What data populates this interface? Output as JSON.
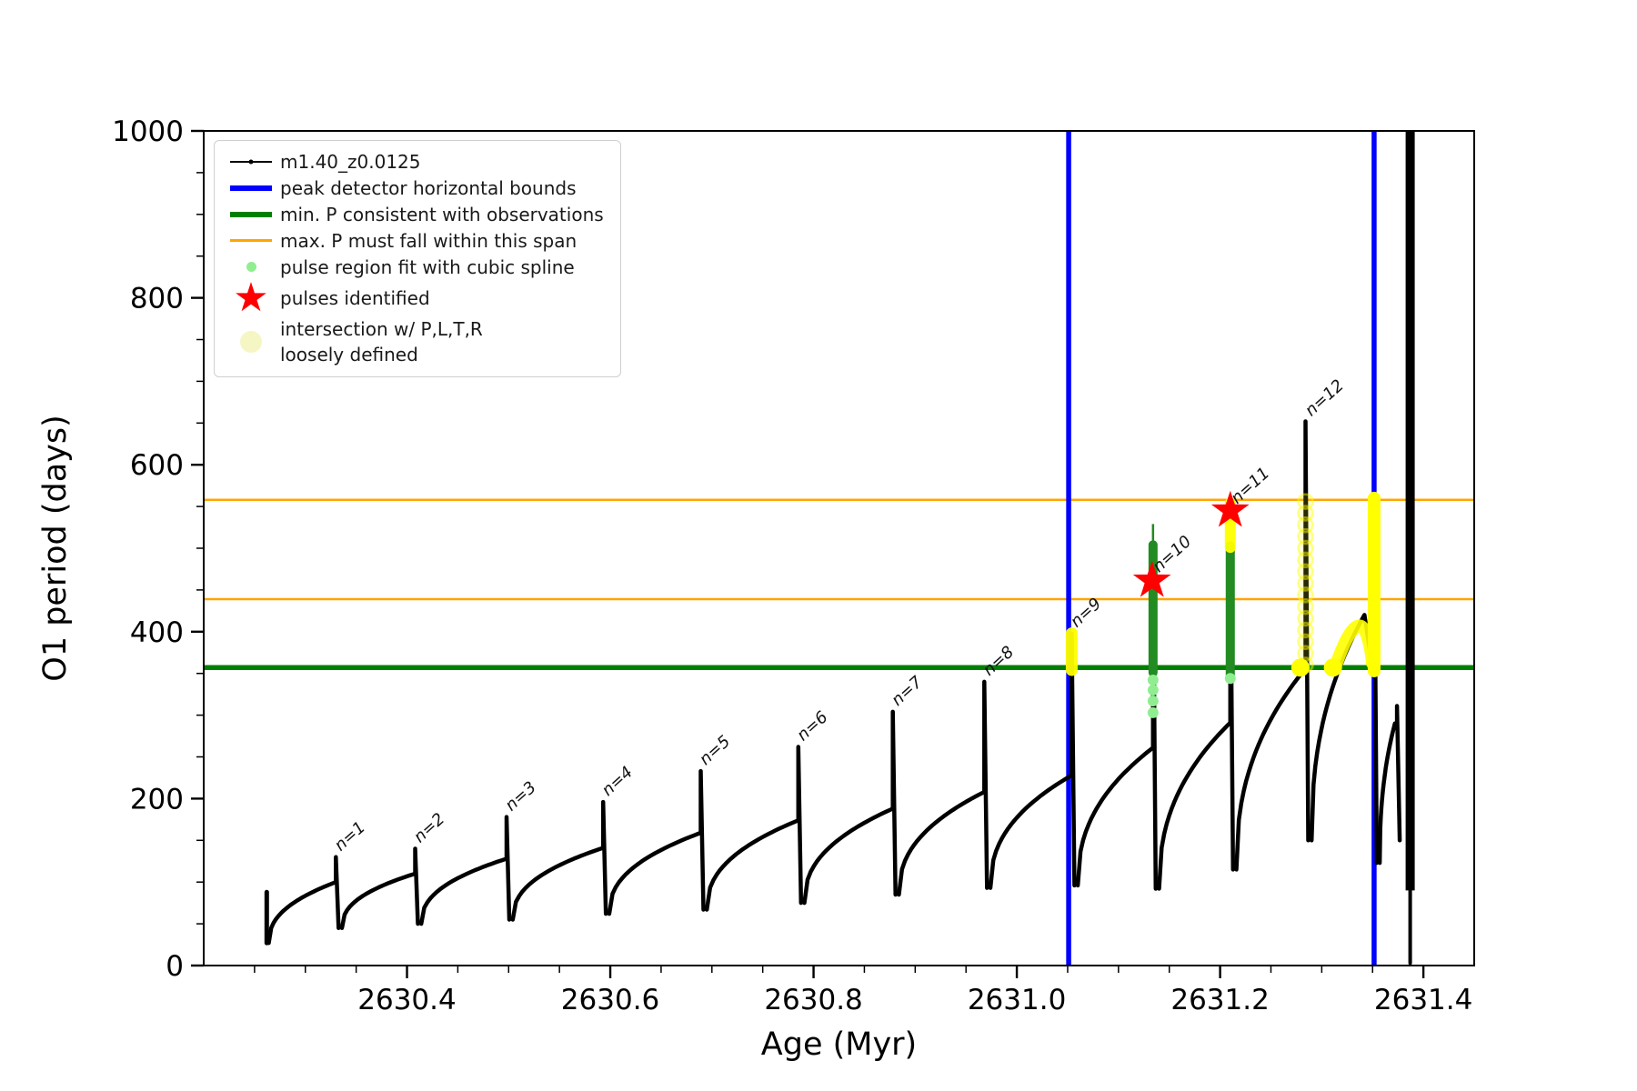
{
  "figure": {
    "kind": "stellar pulse period evolution plot"
  },
  "colors": {
    "series": "#000000",
    "peak_bounds": "#0000ff",
    "min_P": "#008000",
    "max_P": "#ffa500",
    "pulse_fit_column": "#228b22",
    "pulse_fit_light": "#90ee90",
    "pulses_identified": "#ff0000",
    "intersection_yellow": "#ffff00",
    "intersection_pale": "#f6f6c4",
    "tick_text": "#000000"
  },
  "legend": {
    "items": [
      {
        "label": "m1.40_z0.0125",
        "marker": "line-with-dot",
        "color": "#000000"
      },
      {
        "label": "peak detector horizontal bounds",
        "marker": "thick-line",
        "color": "#0000ff"
      },
      {
        "label": "min. P consistent with observations",
        "marker": "thick-line",
        "color": "#008000"
      },
      {
        "label": "max. P must fall within this span",
        "marker": "thin-line",
        "color": "#ffa500"
      },
      {
        "label": "pulse region fit with cubic spline",
        "marker": "small-dot",
        "color": "#90ee90"
      },
      {
        "label": "pulses identified",
        "marker": "star",
        "color": "#ff0000"
      },
      {
        "label": "intersection w/ P,L,T,R\nloosely defined",
        "marker": "big-pale-dot",
        "color": "#f6f6c4"
      }
    ]
  },
  "chart_data": {
    "type": "line",
    "title": "",
    "xlabel": "Age (Myr)",
    "ylabel": "O1 period (days)",
    "xlim": [
      2630.2,
      2631.45
    ],
    "ylim": [
      0,
      1000
    ],
    "xticks": [
      2630.4,
      2630.6,
      2630.8,
      2631.0,
      2631.2,
      2631.4
    ],
    "xtick_labels": [
      "2630.4",
      "2630.6",
      "2630.8",
      "2631.0",
      "2631.2",
      "2631.4"
    ],
    "yticks": [
      0,
      200,
      400,
      600,
      800,
      1000
    ],
    "ytick_labels": [
      "0",
      "200",
      "400",
      "600",
      "800",
      "1000"
    ],
    "x_minor_step": 0.05,
    "y_minor_step": 50,
    "grid": false,
    "legend_position": "upper left",
    "series_name": "m1.40_z0.0125",
    "start_drop": {
      "age": 2630.262,
      "from": 88,
      "to": 27
    },
    "cycles": [
      {
        "n": 1,
        "start_age": 2630.264,
        "min": 27,
        "spike_age": 2630.33,
        "tooth_top": 100,
        "spike_top": 130,
        "drop_to": 45
      },
      {
        "n": 2,
        "start_age": 2630.336,
        "min": 45,
        "spike_age": 2630.408,
        "tooth_top": 110,
        "spike_top": 140,
        "drop_to": 50
      },
      {
        "n": 3,
        "start_age": 2630.414,
        "min": 50,
        "spike_age": 2630.498,
        "tooth_top": 128,
        "spike_top": 178,
        "drop_to": 55
      },
      {
        "n": 4,
        "start_age": 2630.504,
        "min": 55,
        "spike_age": 2630.593,
        "tooth_top": 141,
        "spike_top": 196,
        "drop_to": 62
      },
      {
        "n": 5,
        "start_age": 2630.599,
        "min": 62,
        "spike_age": 2630.689,
        "tooth_top": 159,
        "spike_top": 233,
        "drop_to": 67
      },
      {
        "n": 6,
        "start_age": 2630.695,
        "min": 67,
        "spike_age": 2630.785,
        "tooth_top": 174,
        "spike_top": 262,
        "drop_to": 75
      },
      {
        "n": 7,
        "start_age": 2630.791,
        "min": 75,
        "spike_age": 2630.878,
        "tooth_top": 188,
        "spike_top": 304,
        "drop_to": 85
      },
      {
        "n": 8,
        "start_age": 2630.884,
        "min": 85,
        "spike_age": 2630.968,
        "tooth_top": 208,
        "spike_top": 340,
        "drop_to": 93
      },
      {
        "n": 9,
        "start_age": 2630.974,
        "min": 93,
        "spike_age": 2631.054,
        "tooth_top": 228,
        "spike_top": 398,
        "drop_to": 96
      },
      {
        "n": 10,
        "start_age": 2631.06,
        "min": 96,
        "spike_age": 2631.134,
        "tooth_top": 261,
        "spike_top": 500,
        "drop_to": 92
      },
      {
        "n": 11,
        "start_age": 2631.14,
        "min": 92,
        "spike_age": 2631.21,
        "tooth_top": 291,
        "spike_top": 503,
        "drop_to": 115
      },
      {
        "n": 12,
        "start_age": 2631.216,
        "min": 115,
        "spike_age": 2631.284,
        "tooth_top": 356,
        "spike_top": 652,
        "drop_to": 150
      },
      {
        "n": 13,
        "start_age": 2631.29,
        "min": 150,
        "tooth_age": 2631.342,
        "tooth_top": 420,
        "dip": {
          "age": 2631.349,
          "period": 365
        },
        "spike_age": 2631.3515,
        "spike_top": 563,
        "drop_to": 123
      },
      {
        "n": 14,
        "start_age": 2631.357,
        "min": 123,
        "tooth_age": 2631.372,
        "tooth_top": 290,
        "spike_age": 2631.374,
        "spike_top": 311,
        "drop_to": 150
      }
    ],
    "final_event": {
      "age": 2631.387,
      "top": 1000,
      "thick_to": 90,
      "thin_to": 3
    },
    "peak_detector_bounds_ages": [
      2631.051,
      2631.3515
    ],
    "min_P_consistent": 357,
    "max_P_span": [
      439,
      558
    ],
    "pulses_identified": [
      {
        "age": 2631.133,
        "period": 461
      },
      {
        "age": 2631.21,
        "period": 545
      }
    ],
    "green_fit_columns": [
      {
        "age": 2631.134,
        "from": 351,
        "to": 504,
        "thin_to": 529
      },
      {
        "age": 2631.21,
        "from": 347,
        "to": 503
      }
    ],
    "lightgreen_dot_groups": [
      {
        "age": 2631.134,
        "periods": [
          303,
          317,
          330,
          342
        ]
      },
      {
        "age": 2631.21,
        "periods": [
          344
        ]
      }
    ],
    "yellow_features": {
      "n9_strip": {
        "age": 2631.054,
        "from": 354,
        "to": 398
      },
      "n11_cap": {
        "age": 2631.21,
        "from": 501,
        "to": 554
      },
      "n12_rings": {
        "age": 2631.284,
        "from": 360,
        "to": 556,
        "count": 15
      },
      "solid_dots": [
        {
          "age": 2631.279,
          "period": 357
        },
        {
          "age": 2631.311,
          "period": 357
        }
      ],
      "arch": {
        "start": {
          "age": 2631.313,
          "period": 357
        },
        "apex": {
          "age": 2631.341,
          "period": 424
        },
        "end": {
          "age": 2631.35,
          "period": 362
        }
      },
      "band": {
        "age": 2631.3515,
        "from": 353,
        "to": 560
      }
    },
    "pulse_labels": [
      {
        "label": "n=1",
        "age": 2630.332,
        "period": 132
      },
      {
        "label": "n=2",
        "age": 2630.41,
        "period": 142
      },
      {
        "label": "n=3",
        "age": 2630.5,
        "period": 180
      },
      {
        "label": "n=4",
        "age": 2630.595,
        "period": 198
      },
      {
        "label": "n=5",
        "age": 2630.691,
        "period": 235
      },
      {
        "label": "n=6",
        "age": 2630.787,
        "period": 264
      },
      {
        "label": "n=7",
        "age": 2630.88,
        "period": 306
      },
      {
        "label": "n=8",
        "age": 2630.97,
        "period": 342
      },
      {
        "label": "n=9",
        "age": 2631.056,
        "period": 400
      },
      {
        "label": "n=10",
        "age": 2631.137,
        "period": 466
      },
      {
        "label": "n=11",
        "age": 2631.214,
        "period": 548
      },
      {
        "label": "n=12",
        "age": 2631.287,
        "period": 653
      }
    ]
  }
}
